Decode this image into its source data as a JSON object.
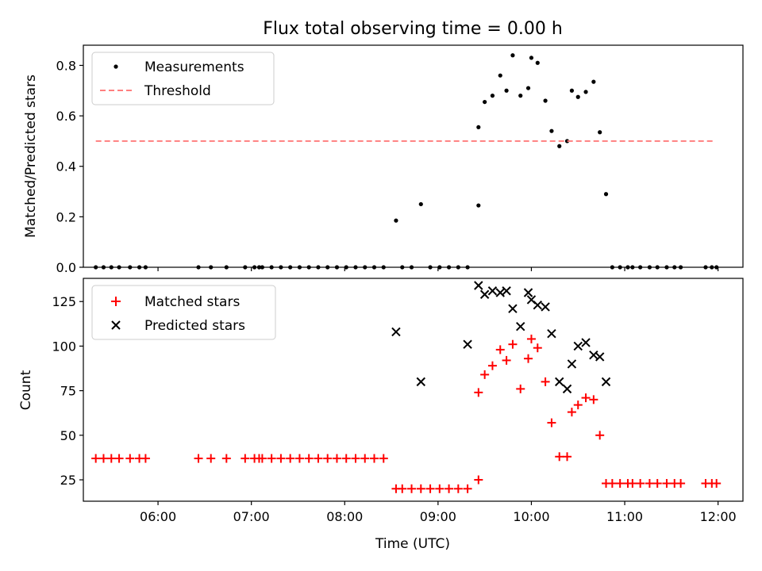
{
  "title": "Flux total observing time = 0.00 h",
  "chart_data": [
    {
      "type": "scatter",
      "ylabel": "Matched/Predicted stars",
      "xlabel": "",
      "x_format": "HH:MM",
      "xlim": [
        "05:12",
        "12:16"
      ],
      "ylim": [
        0,
        0.88
      ],
      "yticks": [
        "0.0",
        "0.2",
        "0.4",
        "0.6",
        "0.8"
      ],
      "grid": false,
      "legend_position": "top-left",
      "series": [
        {
          "name": "Measurements",
          "marker": "dot",
          "color": "#000000",
          "x": [
            "05:20",
            "05:25",
            "05:30",
            "05:35",
            "05:42",
            "05:48",
            "05:52",
            "06:26",
            "06:34",
            "06:44",
            "06:56",
            "07:02",
            "07:05",
            "07:07",
            "07:13",
            "07:19",
            "07:25",
            "07:31",
            "07:37",
            "07:43",
            "07:49",
            "07:55",
            "08:01",
            "08:07",
            "08:13",
            "08:19",
            "08:25",
            "08:33",
            "08:37",
            "08:43",
            "08:49",
            "08:55",
            "09:01",
            "09:07",
            "09:13",
            "09:19",
            "09:26",
            "09:26",
            "09:30",
            "09:35",
            "09:40",
            "09:44",
            "09:48",
            "09:53",
            "09:58",
            "10:00",
            "10:04",
            "10:09",
            "10:13",
            "10:18",
            "10:23",
            "10:26",
            "10:30",
            "10:35",
            "10:40",
            "10:44",
            "10:48",
            "10:52",
            "10:57",
            "11:02",
            "11:05",
            "11:10",
            "11:16",
            "11:21",
            "11:27",
            "11:32",
            "11:36",
            "11:52",
            "11:56",
            "11:59"
          ],
          "y": [
            0,
            0,
            0,
            0,
            0,
            0,
            0,
            0,
            0,
            0,
            0,
            0,
            0,
            0,
            0,
            0,
            0,
            0,
            0,
            0,
            0,
            0,
            0,
            0,
            0,
            0,
            0,
            0.185,
            0,
            0,
            0.25,
            0,
            0,
            0,
            0,
            0,
            0.245,
            0.555,
            0.655,
            0.68,
            0.76,
            0.7,
            0.84,
            0.68,
            0.71,
            0.83,
            0.81,
            0.66,
            0.54,
            0.48,
            0.5,
            0.7,
            0.675,
            0.695,
            0.735,
            0.535,
            0.29,
            0,
            0,
            0,
            0,
            0,
            0,
            0,
            0,
            0,
            0,
            0,
            0,
            0
          ]
        },
        {
          "name": "Threshold",
          "style": "dashed",
          "color": "#ff7f7f",
          "x": [
            "05:20",
            "11:57"
          ],
          "y": [
            0.5,
            0.5
          ]
        }
      ]
    },
    {
      "type": "scatter",
      "ylabel": "Count",
      "xlabel": "Time (UTC)",
      "x_format": "HH:MM",
      "xlim": [
        "05:12",
        "12:16"
      ],
      "ylim": [
        13,
        138
      ],
      "xticks": [
        "06:00",
        "07:00",
        "08:00",
        "09:00",
        "10:00",
        "11:00",
        "12:00"
      ],
      "yticks": [
        "25",
        "50",
        "75",
        "100",
        "125"
      ],
      "grid": false,
      "legend_position": "top-left",
      "series": [
        {
          "name": "Matched stars",
          "marker": "plus",
          "color": "#ff0000",
          "x": [
            "05:20",
            "05:25",
            "05:30",
            "05:35",
            "05:42",
            "05:48",
            "05:52",
            "06:26",
            "06:34",
            "06:44",
            "06:56",
            "07:02",
            "07:05",
            "07:07",
            "07:13",
            "07:19",
            "07:25",
            "07:31",
            "07:37",
            "07:43",
            "07:49",
            "07:55",
            "08:01",
            "08:07",
            "08:13",
            "08:19",
            "08:25",
            "08:33",
            "08:37",
            "08:43",
            "08:49",
            "08:55",
            "09:01",
            "09:07",
            "09:13",
            "09:19",
            "09:26",
            "09:26",
            "09:30",
            "09:35",
            "09:40",
            "09:44",
            "09:48",
            "09:53",
            "09:58",
            "10:00",
            "10:04",
            "10:09",
            "10:13",
            "10:18",
            "10:23",
            "10:26",
            "10:30",
            "10:35",
            "10:40",
            "10:44",
            "10:48",
            "10:52",
            "10:57",
            "11:02",
            "11:05",
            "11:10",
            "11:16",
            "11:21",
            "11:27",
            "11:32",
            "11:36",
            "11:52",
            "11:56",
            "11:59"
          ],
          "y": [
            37,
            37,
            37,
            37,
            37,
            37,
            37,
            37,
            37,
            37,
            37,
            37,
            37,
            37,
            37,
            37,
            37,
            37,
            37,
            37,
            37,
            37,
            37,
            37,
            37,
            37,
            37,
            20,
            20,
            20,
            20,
            20,
            20,
            20,
            20,
            20,
            25,
            74,
            84,
            89,
            98,
            92,
            101,
            76,
            93,
            104,
            99,
            80,
            57,
            38,
            38,
            63,
            67,
            71,
            70,
            50,
            23,
            23,
            23,
            23,
            23,
            23,
            23,
            23,
            23,
            23,
            23,
            23,
            23,
            23
          ]
        },
        {
          "name": "Predicted stars",
          "marker": "x",
          "color": "#000000",
          "x": [
            "08:33",
            "08:49",
            "09:19",
            "09:26",
            "09:30",
            "09:35",
            "09:40",
            "09:44",
            "09:48",
            "09:53",
            "09:58",
            "10:00",
            "10:04",
            "10:09",
            "10:13",
            "10:18",
            "10:23",
            "10:26",
            "10:30",
            "10:35",
            "10:40",
            "10:44",
            "10:48"
          ],
          "y": [
            108,
            80,
            101,
            134,
            129,
            131,
            130,
            131,
            121,
            111,
            130,
            126,
            123,
            122,
            107,
            80,
            76,
            90,
            100,
            102,
            95,
            94,
            80
          ]
        }
      ]
    }
  ]
}
